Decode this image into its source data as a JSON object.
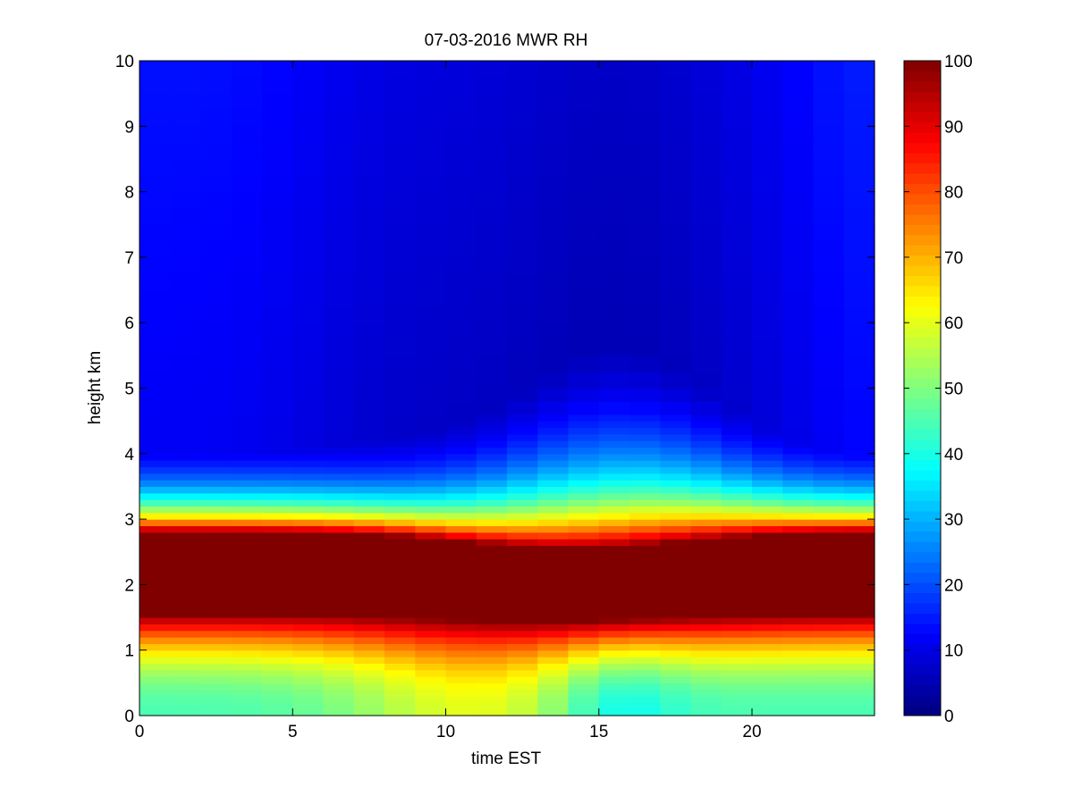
{
  "chart_data": {
    "type": "heatmap",
    "title": "07-03-2016 MWR RH",
    "xlabel": "time EST",
    "ylabel": "height km",
    "xlim": [
      0,
      24
    ],
    "ylim": [
      0,
      10
    ],
    "x_ticks": [
      0,
      5,
      10,
      15,
      20
    ],
    "x_tick_labels": [
      "0",
      "5",
      "10",
      "15",
      "20"
    ],
    "y_ticks": [
      0,
      1,
      2,
      3,
      4,
      5,
      6,
      7,
      8,
      9,
      10
    ],
    "y_tick_labels": [
      "0",
      "1",
      "2",
      "3",
      "4",
      "5",
      "6",
      "7",
      "8",
      "9",
      "10"
    ],
    "colorbar": {
      "colormap": "jet",
      "range": [
        0,
        100
      ],
      "ticks": [
        0,
        10,
        20,
        30,
        40,
        50,
        60,
        70,
        80,
        90,
        100
      ],
      "tick_labels": [
        "0",
        "10",
        "20",
        "30",
        "40",
        "50",
        "60",
        "70",
        "80",
        "90",
        "100"
      ]
    },
    "time_EST": [
      0.5,
      1.5,
      2.5,
      3.5,
      4.5,
      5.5,
      6.5,
      7.5,
      8.5,
      9.5,
      10.5,
      11.5,
      12.5,
      13.5,
      14.5,
      15.5,
      16.5,
      17.5,
      18.5,
      19.5,
      20.5,
      21.5,
      22.5,
      23.5
    ],
    "height_km": [
      0,
      0.1,
      0.2,
      0.3,
      0.4,
      0.5,
      0.6,
      0.7,
      0.8,
      0.9,
      1.0,
      1.1,
      1.2,
      1.3,
      1.4,
      1.5,
      1.6,
      1.7,
      1.8,
      1.9,
      2.0,
      2.1,
      2.2,
      2.3,
      2.4,
      2.5,
      2.6,
      2.7,
      2.8,
      2.9,
      3.0,
      3.1,
      3.2,
      3.3,
      3.4,
      3.5,
      3.6,
      3.7,
      3.8,
      3.9,
      4.0,
      4.1,
      4.2,
      4.3,
      4.4,
      4.5,
      4.6,
      4.8,
      5.0,
      5.25,
      5.5,
      5.75,
      6.0,
      6.25,
      6.5,
      6.75,
      7.0,
      7.25,
      7.5,
      7.75,
      8.0,
      8.25,
      8.5,
      8.75,
      9.0,
      9.25,
      9.5,
      9.75
    ],
    "rh_profile_summary": {
      "moist_layer_km": [
        1.6,
        2.8
      ],
      "moist_layer_rh": 100,
      "surface_rh_range": [
        35,
        65
      ],
      "upper_rh_range": [
        3,
        15
      ]
    }
  }
}
